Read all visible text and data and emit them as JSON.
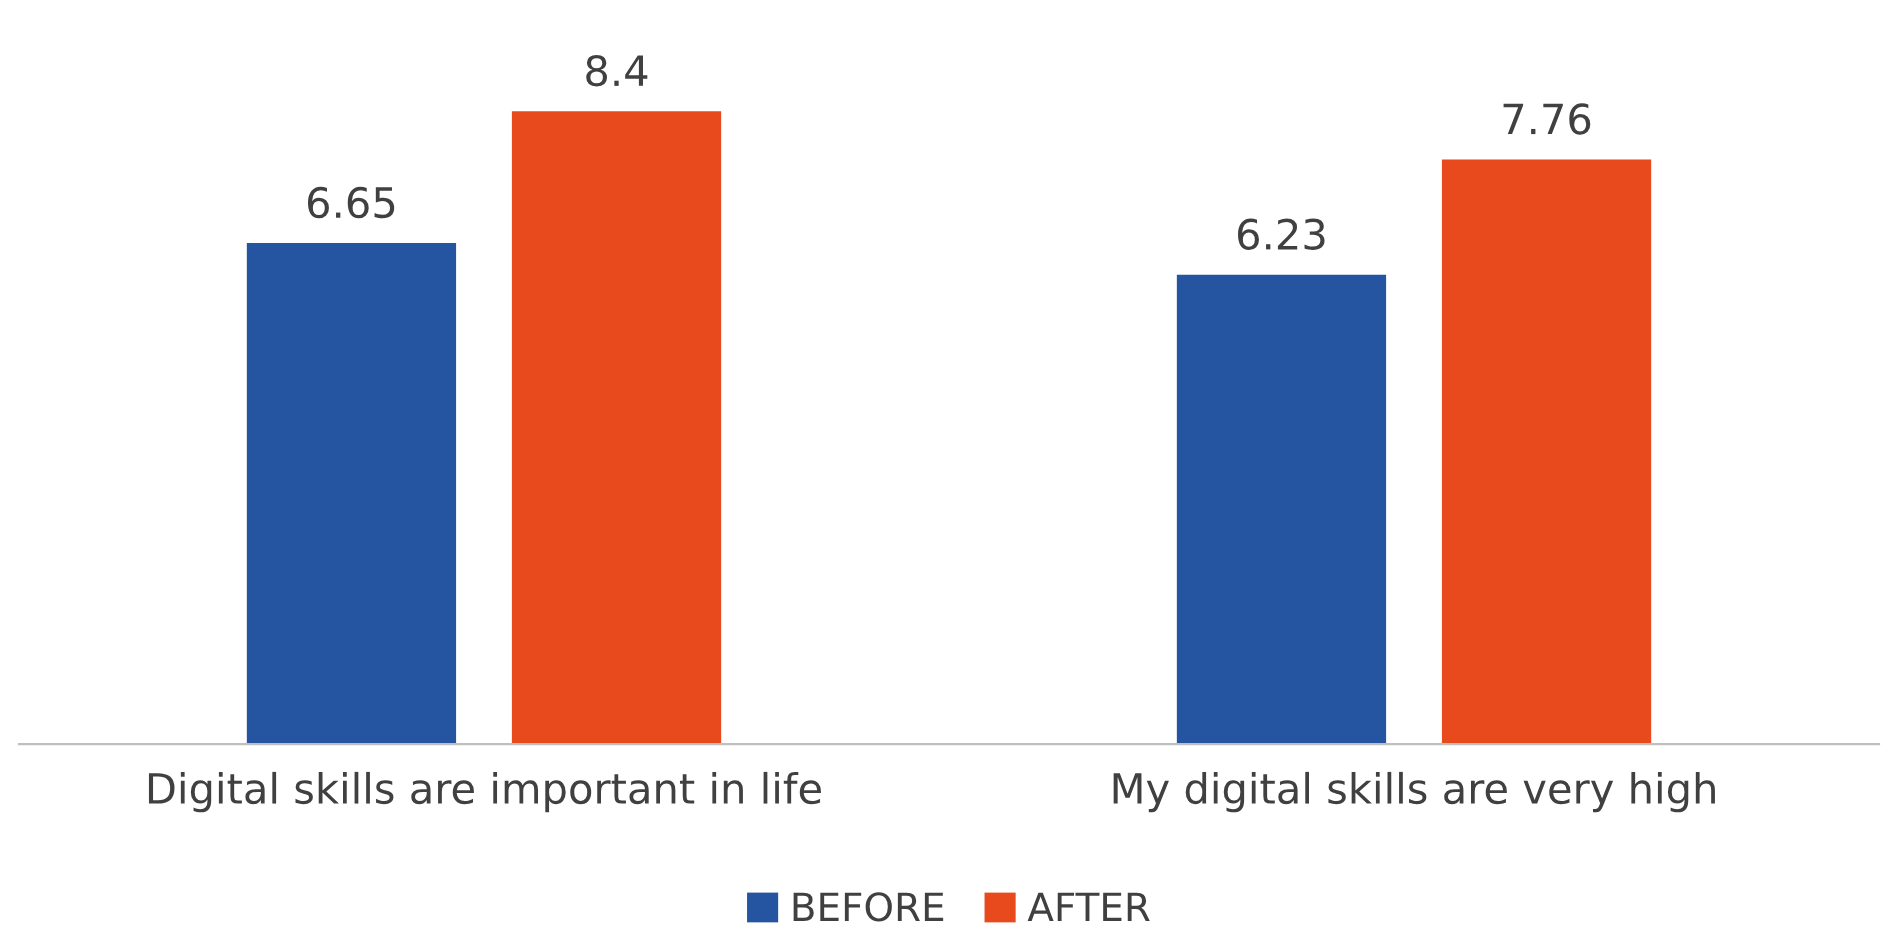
{
  "chart_data": {
    "type": "bar",
    "categories": [
      "Digital skills are important in life",
      "My digital skills are very high"
    ],
    "series": [
      {
        "name": "BEFORE",
        "color": "#2555a0",
        "values": [
          6.65,
          6.23
        ]
      },
      {
        "name": "AFTER",
        "color": "#e8491d",
        "values": [
          8.4,
          7.76
        ]
      }
    ],
    "data_labels": true,
    "legend": "bottom"
  }
}
